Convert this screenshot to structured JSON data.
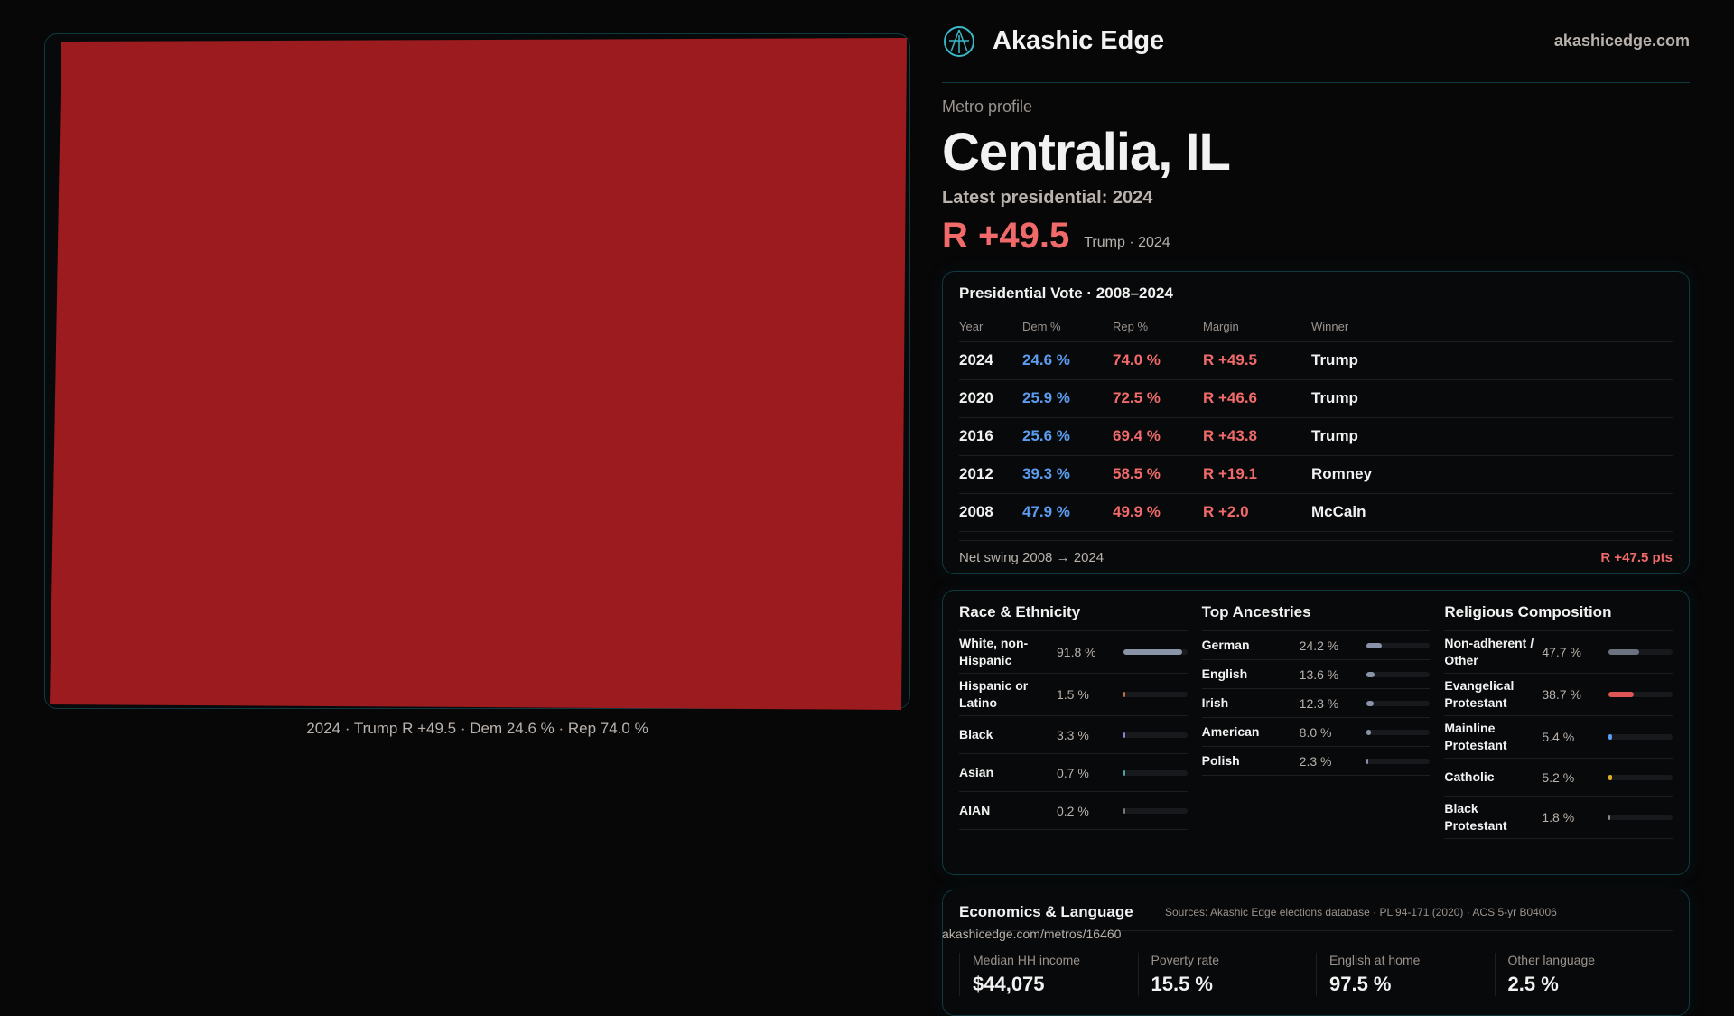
{
  "map": {
    "fill_color": "#9b1b1e",
    "caption": "2024 · Trump R +49.5 · Dem 24.6 % · Rep 74.0 %"
  },
  "header": {
    "brand": "Akashic Edge",
    "site": "akashicedge.com",
    "logo_icon": "akashic-logo-icon"
  },
  "profile": {
    "kicker": "Metro profile",
    "title": "Centralia, IL",
    "latest": "Latest presidential: 2024",
    "margin": "R +49.5",
    "margin_sub": "Trump · 2024"
  },
  "colors": {
    "dem": "#5b9cf0",
    "rep": "#f06a6a"
  },
  "vote": {
    "title": "Presidential Vote · 2008–2024",
    "headers": [
      "Year",
      "Dem %",
      "Rep %",
      "Margin",
      "Winner"
    ],
    "rows": [
      [
        "2024",
        "24.6 %",
        "74.0 %",
        "R +49.5",
        "Trump"
      ],
      [
        "2020",
        "25.9 %",
        "72.5 %",
        "R +46.6",
        "Trump"
      ],
      [
        "2016",
        "25.6 %",
        "69.4 %",
        "R +43.8",
        "Trump"
      ],
      [
        "2012",
        "39.3 %",
        "58.5 %",
        "R +19.1",
        "Romney"
      ],
      [
        "2008",
        "47.9 %",
        "49.9 %",
        "R +2.0",
        "McCain"
      ]
    ],
    "swing_label": "Net swing 2008 → 2024",
    "swing_value": "R +47.5 pts"
  },
  "demographics": [
    {
      "title": "Race & Ethnicity",
      "items": [
        {
          "label": "White, non-Hispanic",
          "value": "91.8 %",
          "pct": 91.8,
          "color": "#8a94a8"
        },
        {
          "label": "Hispanic or Latino",
          "value": "1.5 %",
          "pct": 1.5,
          "color": "#c0703a"
        },
        {
          "label": "Black",
          "value": "3.3 %",
          "pct": 3.3,
          "color": "#8b7fd6"
        },
        {
          "label": "Asian",
          "value": "0.7 %",
          "pct": 0.7,
          "color": "#4aa3a3"
        },
        {
          "label": "AIAN",
          "value": "0.2 %",
          "pct": 0.2,
          "color": "#777777"
        }
      ]
    },
    {
      "title": "Top Ancestries",
      "items": [
        {
          "label": "German",
          "value": "24.2 %",
          "pct": 24.2,
          "color": "#8a94a8"
        },
        {
          "label": "English",
          "value": "13.6 %",
          "pct": 13.6,
          "color": "#8a94a8"
        },
        {
          "label": "Irish",
          "value": "12.3 %",
          "pct": 12.3,
          "color": "#8a94a8"
        },
        {
          "label": "American",
          "value": "8.0 %",
          "pct": 8.0,
          "color": "#8a94a8"
        },
        {
          "label": "Polish",
          "value": "2.3 %",
          "pct": 2.3,
          "color": "#8a94a8"
        }
      ]
    },
    {
      "title": "Religious Composition",
      "items": [
        {
          "label": "Non-adherent / Other",
          "value": "47.7 %",
          "pct": 47.7,
          "color": "#6b7280"
        },
        {
          "label": "Evangelical Protestant",
          "value": "38.7 %",
          "pct": 38.7,
          "color": "#e05555"
        },
        {
          "label": "Mainline Protestant",
          "value": "5.4 %",
          "pct": 5.4,
          "color": "#5b9cf0"
        },
        {
          "label": "Catholic",
          "value": "5.2 %",
          "pct": 5.2,
          "color": "#e0b020"
        },
        {
          "label": "Black Protestant",
          "value": "1.8 %",
          "pct": 1.8,
          "color": "#8a8a8a"
        }
      ]
    }
  ],
  "economics": {
    "title": "Economics & Language",
    "stats": [
      {
        "label": "Median HH income",
        "value": "$44,075"
      },
      {
        "label": "Poverty rate",
        "value": "15.5 %"
      },
      {
        "label": "English at home",
        "value": "97.5 %"
      },
      {
        "label": "Other language",
        "value": "2.5 %"
      }
    ]
  },
  "footer": {
    "sources": "Sources: Akashic Edge elections database · PL 94-171 (2020) · ACS 5-yr B04006",
    "url": "akashicedge.com/metros/16460"
  }
}
